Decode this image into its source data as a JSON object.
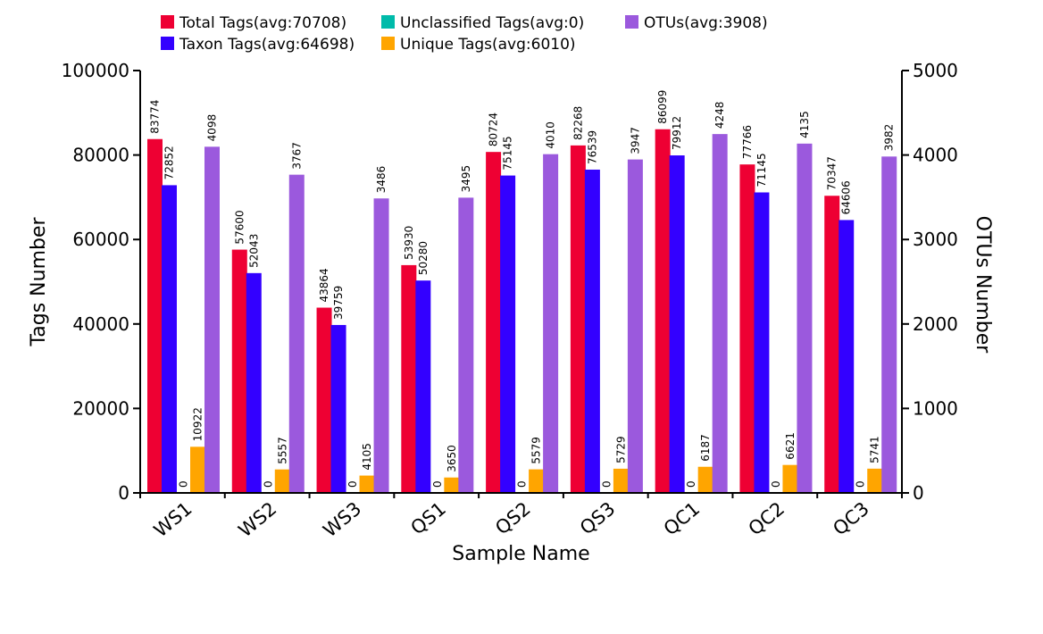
{
  "chart_data": {
    "type": "bar",
    "categories": [
      "WS1",
      "WS2",
      "WS3",
      "QS1",
      "QS2",
      "QS3",
      "QC1",
      "QC2",
      "QC3"
    ],
    "series": [
      {
        "name": "Total Tags(avg:70708)",
        "axis": "left",
        "color": "#EE0033",
        "values": [
          83774,
          57600,
          43864,
          53930,
          80724,
          82268,
          86099,
          77766,
          70347
        ]
      },
      {
        "name": "Taxon Tags(avg:64698)",
        "axis": "left",
        "color": "#3300FF",
        "values": [
          72852,
          52043,
          39759,
          50280,
          75145,
          76539,
          79912,
          71145,
          64606
        ]
      },
      {
        "name": "Unclassified Tags(avg:0)",
        "axis": "left",
        "color": "#00BBAA",
        "values": [
          0,
          0,
          0,
          0,
          0,
          0,
          0,
          0,
          0
        ]
      },
      {
        "name": "Unique Tags(avg:6010)",
        "axis": "left",
        "color": "#FFA500",
        "values": [
          10922,
          5557,
          4105,
          3650,
          5579,
          5729,
          6187,
          6621,
          5741
        ]
      },
      {
        "name": "OTUs(avg:3908)",
        "axis": "right",
        "color": "#9B59DD",
        "values": [
          4098,
          3767,
          3486,
          3495,
          4010,
          3947,
          4248,
          4135,
          3982
        ]
      }
    ],
    "xlabel": "Sample Name",
    "ylabel": "Tags Number",
    "y2label": "OTUs Number",
    "ylim": [
      0,
      100000
    ],
    "y2lim": [
      0,
      5000
    ],
    "yticks": [
      "0",
      "20000",
      "40000",
      "60000",
      "80000",
      "100000"
    ],
    "y2ticks": [
      "0",
      "1000",
      "2000",
      "3000",
      "4000",
      "5000"
    ],
    "grid": false,
    "legend_position": "top"
  }
}
